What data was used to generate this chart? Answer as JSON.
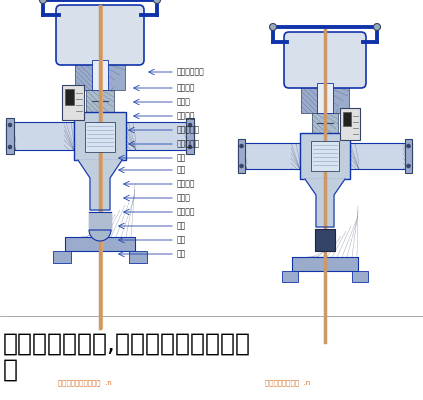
{
  "title_line1": "调压阀工作原理,气动调节阀的工作原",
  "title_line2": "理",
  "title_fontsize": 18,
  "title_color": "#000000",
  "image_bg": "#ffffff",
  "labels": [
    "调压节调低产",
    "召器战六",
    "意竹刷",
    "汽根路牛",
    "吐戊管牛斯",
    "稣土管控钱",
    "稣刀",
    "稣针",
    "召器出翻",
    "管功路",
    "管座展图",
    "稣土",
    "召阀",
    "整阀"
  ],
  "watermark_left": "国界阀配产对各管处理  .n",
  "watermark_right": "国界阀配产压逃客  .n",
  "watermark_color": "#cc5500",
  "line_color": "#1133aa",
  "body_fill": "#c8d4e4",
  "hatch_fill": "#9aabcc",
  "spring_color": "#996644",
  "stem_color": "#cc9966",
  "blue_pipe": "#1133aa",
  "label_line_color": "#333388",
  "bg_white": "#ffffff",
  "bg_light": "#f5f5f8"
}
